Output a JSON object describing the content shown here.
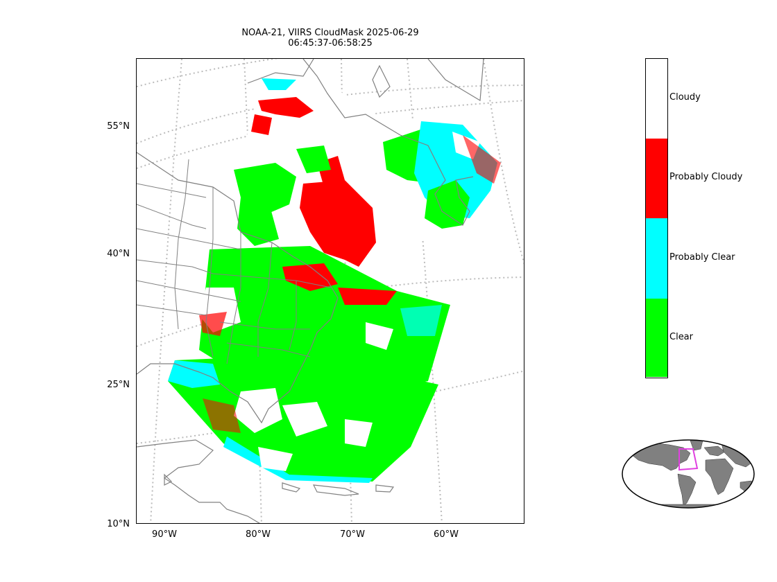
{
  "title": {
    "line1": "NOAA-21, VIIRS CloudMask 2025-06-29",
    "line2": "06:45:37-06:58:25"
  },
  "axes": {
    "lat_ticks": [
      "55°N",
      "40°N",
      "25°N",
      "10°N"
    ],
    "lon_ticks": [
      "90°W",
      "80°W",
      "70°W",
      "60°W"
    ]
  },
  "colorbar": {
    "classes": [
      {
        "label": "Cloudy",
        "color": "#ffffff"
      },
      {
        "label": "Probably Cloudy",
        "color": "#ff0000"
      },
      {
        "label": "Probably Clear",
        "color": "#00ffff"
      },
      {
        "label": "Clear",
        "color": "#00ff00"
      }
    ]
  },
  "colors": {
    "coastline": "#808080",
    "graticule": "#bbbbbb",
    "land_inset": "#808080",
    "inset_box": "#e040e0"
  }
}
